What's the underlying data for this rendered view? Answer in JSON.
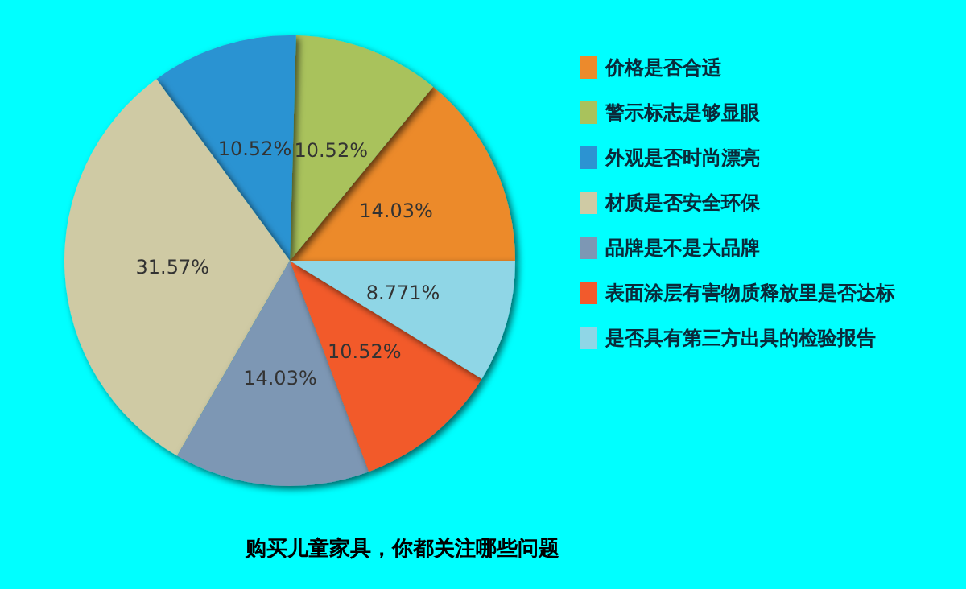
{
  "chart_data": {
    "type": "pie",
    "title": "购买儿童家具，你都关注哪些问题",
    "categories": [
      "价格是否合适",
      "警示标志是够显眼",
      "外观是否时尚漂亮",
      "材质是否安全环保",
      "品牌是不是大品牌",
      "表面涂层有害物质释放里是否达标",
      "是否具有第三方出具的检验报告"
    ],
    "values": [
      14.03,
      10.52,
      10.52,
      31.57,
      14.03,
      10.52,
      8.771
    ],
    "colors": [
      "#ec8a2c",
      "#a9c25c",
      "#2c93d2",
      "#cfcaa4",
      "#7d97b4",
      "#f25a2c",
      "#8fd6e6"
    ],
    "value_labels": [
      "14.03%",
      "10.52%",
      "10.52%",
      "31.57%",
      "14.03%",
      "10.52%",
      "8.771%"
    ],
    "legend": "right"
  }
}
